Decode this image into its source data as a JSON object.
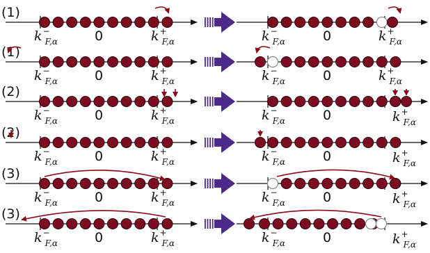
{
  "colors": {
    "particle_fill": "#7b0c22",
    "particle_stroke": "#2a0008",
    "hole_fill": "#ffffff",
    "hole_stroke": "#888888",
    "arrow_red": "#8b0a1a",
    "transition_arrow": "#4b2a8a",
    "axis": "#111111"
  },
  "labels": {
    "k_symbol": "k",
    "sub": "F,α",
    "sup_minus": "−",
    "sup_plus": "+",
    "zero": "0"
  },
  "rows": [
    {
      "label": "(1)",
      "left": {
        "particles": 10,
        "holes": [],
        "outer": [],
        "arrow_desc": "curved-out-right"
      },
      "right": {
        "particles": 9,
        "holes": [
          "inner-right"
        ],
        "outer": [
          "right-out"
        ],
        "arrow_desc": "curved-out-right"
      },
      "right_label_shift": false
    },
    {
      "label": "(1)",
      "left": {
        "particles": 10,
        "holes": [],
        "outer": [],
        "arrow_desc": "curved-out-left"
      },
      "right": {
        "particles": 9,
        "holes": [
          "inner-left"
        ],
        "outer": [
          "left-out"
        ],
        "arrow_desc": "curved-out-left"
      },
      "right_label_shift": false
    },
    {
      "label": "(2)",
      "left": {
        "particles": 10,
        "holes": [],
        "outer": [],
        "arrow_desc": "two-down-right"
      },
      "right": {
        "particles": 12,
        "holes": [],
        "outer": [
          "right-add-2"
        ],
        "arrow_desc": "two-down-right"
      },
      "right_label_shift": true
    },
    {
      "label": "(2)",
      "left": {
        "particles": 10,
        "holes": [],
        "outer": [],
        "arrow_desc": "one-down-left"
      },
      "right": {
        "particles": 11,
        "holes": [],
        "outer": [
          "left-add-1"
        ],
        "arrow_desc": "one-down-left"
      },
      "right_label_shift": true
    },
    {
      "label": "(3)",
      "left": {
        "particles": 10,
        "holes": [],
        "outer": [],
        "arrow_desc": "long-left-to-right"
      },
      "right": {
        "particles": 10,
        "holes": [
          "left"
        ],
        "outer": [
          "right-out"
        ],
        "arrow_desc": "long-left-to-right"
      },
      "right_label_shift": true
    },
    {
      "label": "(3)",
      "left": {
        "particles": 10,
        "holes": [],
        "outer": [],
        "arrow_desc": "long-right-to-left"
      },
      "right": {
        "particles": 10,
        "holes": [
          "right"
        ],
        "outer": [
          "left-out"
        ],
        "arrow_desc": "long-right-to-left"
      },
      "right_label_shift": true
    }
  ]
}
